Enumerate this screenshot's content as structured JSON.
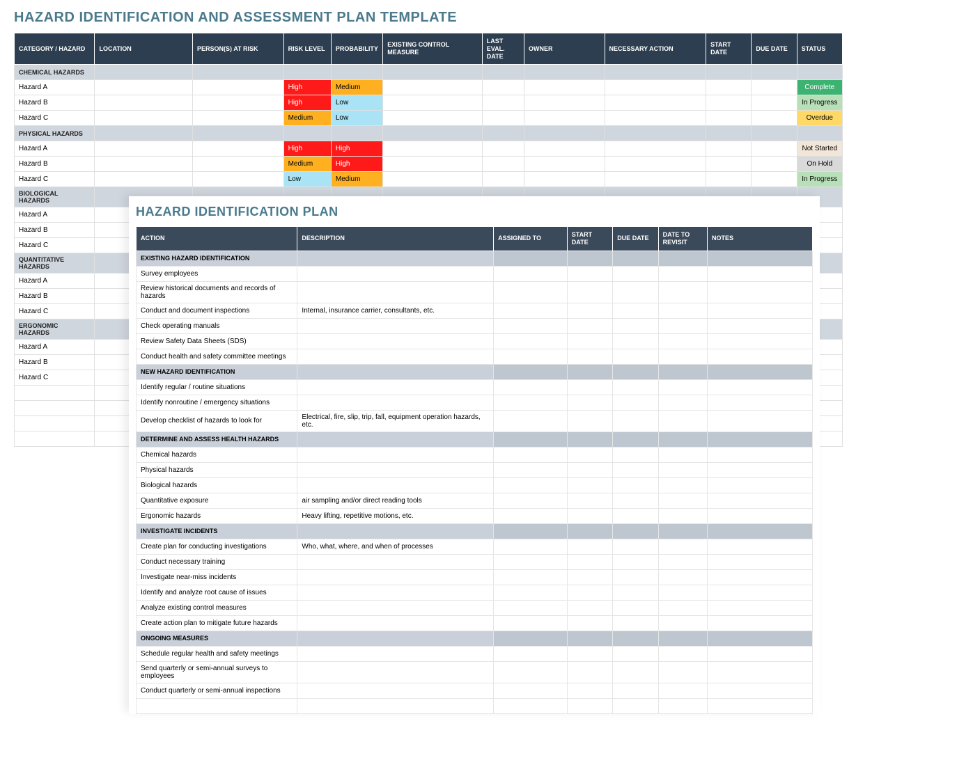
{
  "colors": {
    "title": "#4a7a8c",
    "header_bg": "#2d3e50",
    "section_bg": "#d0d6de",
    "high": "#ff1a1a",
    "medium": "#ffb020",
    "low": "#a9e3f5",
    "complete": "#3cb371",
    "inprogress": "#b8e0b8",
    "overdue": "#ffd966",
    "notstarted": "#f2e6d9",
    "onhold": "#d9d9d9"
  },
  "assessment": {
    "title": "HAZARD IDENTIFICATION AND ASSESSMENT PLAN TEMPLATE",
    "headers": {
      "category": "CATEGORY / HAZARD",
      "location": "LOCATION",
      "persons": "PERSON(S) AT RISK",
      "risk": "RISK LEVEL",
      "prob": "PROBABILITY",
      "measure": "EXISTING CONTROL MEASURE",
      "last": "LAST EVAL. DATE",
      "owner": "OWNER",
      "action": "NECESSARY ACTION",
      "start": "START DATE",
      "due": "DUE DATE",
      "status": "STATUS"
    },
    "groups": [
      {
        "section": "CHEMICAL HAZARDS",
        "rows": [
          {
            "name": "Hazard A",
            "risk": "High",
            "prob": "Medium",
            "status": "Complete"
          },
          {
            "name": "Hazard B",
            "risk": "High",
            "prob": "Low",
            "status": "In Progress"
          },
          {
            "name": "Hazard C",
            "risk": "Medium",
            "prob": "Low",
            "status": "Overdue"
          }
        ]
      },
      {
        "section": "PHYSICAL HAZARDS",
        "rows": [
          {
            "name": "Hazard A",
            "risk": "High",
            "prob": "High",
            "status": "Not Started"
          },
          {
            "name": "Hazard B",
            "risk": "Medium",
            "prob": "High",
            "status": "On Hold"
          },
          {
            "name": "Hazard C",
            "risk": "Low",
            "prob": "Medium",
            "status": "In Progress"
          }
        ]
      },
      {
        "section": "BIOLOGICAL HAZARDS",
        "rows": [
          {
            "name": "Hazard A",
            "risk": "",
            "prob": "",
            "status": ""
          },
          {
            "name": "Hazard B",
            "risk": "",
            "prob": "",
            "status": ""
          },
          {
            "name": "Hazard C",
            "risk": "",
            "prob": "",
            "status": ""
          }
        ]
      },
      {
        "section": "QUANTITATIVE HAZARDS",
        "rows": [
          {
            "name": "Hazard A",
            "risk": "",
            "prob": "",
            "status": ""
          },
          {
            "name": "Hazard B",
            "risk": "",
            "prob": "",
            "status": ""
          },
          {
            "name": "Hazard C",
            "risk": "",
            "prob": "",
            "status": ""
          }
        ]
      },
      {
        "section": "ERGONOMIC HAZARDS",
        "rows": [
          {
            "name": "Hazard A",
            "risk": "",
            "prob": "",
            "status": ""
          },
          {
            "name": "Hazard B",
            "risk": "",
            "prob": "",
            "status": ""
          },
          {
            "name": "Hazard C",
            "risk": "",
            "prob": "",
            "status": ""
          }
        ]
      }
    ],
    "trailing_empty_rows": 4
  },
  "plan": {
    "title": "HAZARD IDENTIFICATION PLAN",
    "headers": {
      "action": "ACTION",
      "desc": "DESCRIPTION",
      "assigned": "ASSIGNED TO",
      "start": "START DATE",
      "due": "DUE DATE",
      "revisit": "DATE TO REVISIT",
      "notes": "NOTES"
    },
    "groups": [
      {
        "section": "EXISTING HAZARD IDENTIFICATION",
        "rows": [
          {
            "action": "Survey employees",
            "desc": ""
          },
          {
            "action": "Review historical documents and records of hazards",
            "desc": ""
          },
          {
            "action": "Conduct and document inspections",
            "desc": "Internal, insurance carrier, consultants, etc."
          },
          {
            "action": "Check operating manuals",
            "desc": ""
          },
          {
            "action": "Review Safety Data Sheets (SDS)",
            "desc": ""
          },
          {
            "action": "Conduct health and safety committee meetings",
            "desc": ""
          }
        ]
      },
      {
        "section": "NEW HAZARD IDENTIFICATION",
        "rows": [
          {
            "action": "Identify regular / routine situations",
            "desc": ""
          },
          {
            "action": "Identify nonroutine / emergency situations",
            "desc": ""
          },
          {
            "action": "Develop checklist of hazards to look for",
            "desc": "Electrical, fire, slip, trip, fall, equipment operation hazards, etc."
          }
        ]
      },
      {
        "section": "DETERMINE AND ASSESS HEALTH HAZARDS",
        "rows": [
          {
            "action": "Chemical hazards",
            "desc": ""
          },
          {
            "action": "Physical hazards",
            "desc": ""
          },
          {
            "action": "Biological hazards",
            "desc": ""
          },
          {
            "action": "Quantitative exposure",
            "desc": "air sampling and/or direct reading tools"
          },
          {
            "action": "Ergonomic hazards",
            "desc": "Heavy lifting, repetitive motions, etc."
          }
        ]
      },
      {
        "section": "INVESTIGATE INCIDENTS",
        "rows": [
          {
            "action": "Create plan for conducting investigations",
            "desc": "Who, what, where, and when of processes"
          },
          {
            "action": "Conduct necessary training",
            "desc": ""
          },
          {
            "action": "Investigate near-miss incidents",
            "desc": ""
          },
          {
            "action": "Identify and analyze root cause of issues",
            "desc": ""
          },
          {
            "action": "Analyze existing control measures",
            "desc": ""
          },
          {
            "action": "Create action plan to mitigate future hazards",
            "desc": ""
          }
        ]
      },
      {
        "section": "ONGOING MEASURES",
        "rows": [
          {
            "action": "Schedule regular health and safety meetings",
            "desc": ""
          },
          {
            "action": "Send quarterly or semi-annual surveys to employees",
            "desc": ""
          },
          {
            "action": "Conduct quarterly or semi-annual inspections",
            "desc": ""
          }
        ]
      }
    ],
    "trailing_empty_rows": 1
  }
}
